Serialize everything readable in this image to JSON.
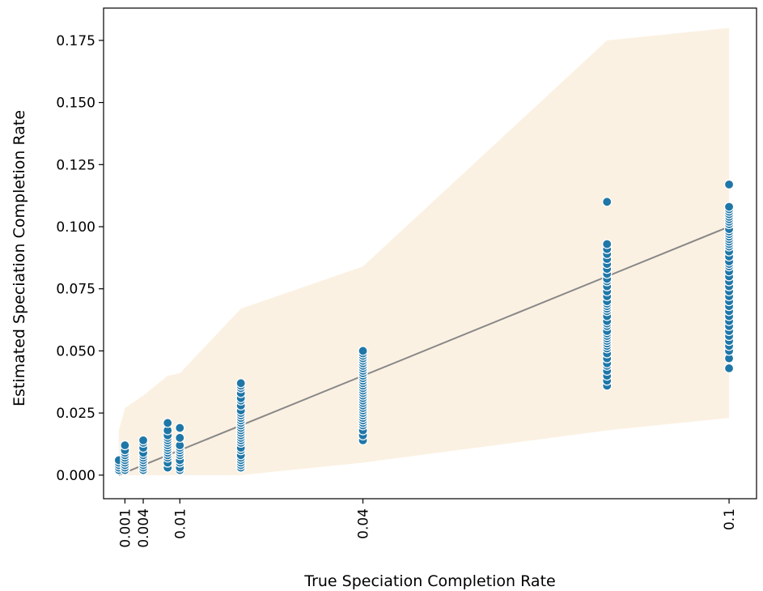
{
  "chart_data": {
    "type": "scatter",
    "title": "",
    "xlabel": "True Speciation Completion Rate",
    "ylabel": "Estimated Speciation Completion Rate",
    "xlim": [
      -0.0025,
      0.1045
    ],
    "ylim": [
      -0.0095,
      0.188
    ],
    "x_ticks": [
      {
        "value": 0.001,
        "label": "0.001"
      },
      {
        "value": 0.004,
        "label": "0.004"
      },
      {
        "value": 0.01,
        "label": "0.01"
      },
      {
        "value": 0.04,
        "label": "0.04"
      },
      {
        "value": 0.1,
        "label": "0.1"
      }
    ],
    "y_ticks": [
      {
        "value": 0.0,
        "label": "0.000"
      },
      {
        "value": 0.025,
        "label": "0.025"
      },
      {
        "value": 0.05,
        "label": "0.050"
      },
      {
        "value": 0.075,
        "label": "0.075"
      },
      {
        "value": 0.1,
        "label": "0.100"
      },
      {
        "value": 0.125,
        "label": "0.125"
      },
      {
        "value": 0.15,
        "label": "0.150"
      },
      {
        "value": 0.175,
        "label": "0.175"
      }
    ],
    "grid": false,
    "colors": {
      "points": "#1f77a8",
      "point_edge": "#ffffff",
      "line": "#888888",
      "band": "#fbf1e2"
    },
    "band": {
      "x": [
        0.0,
        0.001,
        0.004,
        0.007,
        0.008,
        0.01,
        0.02,
        0.04,
        0.08,
        0.1
      ],
      "upper": [
        0.018,
        0.027,
        0.032,
        0.038,
        0.04,
        0.041,
        0.067,
        0.084,
        0.175,
        0.18
      ],
      "lower": [
        0.0,
        0.0,
        0.0,
        0.0,
        0.0,
        0.0,
        0.0,
        0.005,
        0.018,
        0.023
      ]
    },
    "line": {
      "x": [
        0.0,
        0.1
      ],
      "y": [
        0.0,
        0.1
      ]
    },
    "series": [
      {
        "x": 0.0,
        "values": [
          0.002,
          0.003,
          0.004,
          0.005,
          0.006
        ]
      },
      {
        "x": 0.001,
        "values": [
          0.002,
          0.003,
          0.004,
          0.005,
          0.006,
          0.007,
          0.008,
          0.009,
          0.01,
          0.012
        ]
      },
      {
        "x": 0.004,
        "values": [
          0.002,
          0.003,
          0.004,
          0.005,
          0.006,
          0.007,
          0.008,
          0.009,
          0.011,
          0.013,
          0.014
        ]
      },
      {
        "x": 0.008,
        "values": [
          0.003,
          0.005,
          0.007,
          0.008,
          0.009,
          0.01,
          0.011,
          0.012,
          0.013,
          0.014,
          0.015,
          0.016,
          0.018,
          0.021
        ]
      },
      {
        "x": 0.01,
        "values": [
          0.002,
          0.003,
          0.005,
          0.006,
          0.008,
          0.009,
          0.01,
          0.011,
          0.012,
          0.015,
          0.019
        ]
      },
      {
        "x": 0.02,
        "values": [
          0.003,
          0.004,
          0.005,
          0.006,
          0.007,
          0.008,
          0.01,
          0.011,
          0.013,
          0.014,
          0.015,
          0.016,
          0.017,
          0.018,
          0.019,
          0.02,
          0.021,
          0.022,
          0.023,
          0.024,
          0.025,
          0.026,
          0.028,
          0.03,
          0.031,
          0.033,
          0.035,
          0.036,
          0.037
        ]
      },
      {
        "x": 0.04,
        "values": [
          0.014,
          0.016,
          0.018,
          0.02,
          0.021,
          0.022,
          0.023,
          0.024,
          0.025,
          0.026,
          0.027,
          0.028,
          0.029,
          0.03,
          0.031,
          0.032,
          0.033,
          0.034,
          0.035,
          0.036,
          0.037,
          0.038,
          0.039,
          0.04,
          0.041,
          0.042,
          0.043,
          0.044,
          0.045,
          0.046,
          0.047,
          0.048,
          0.049,
          0.05
        ]
      },
      {
        "x": 0.08,
        "values": [
          0.036,
          0.038,
          0.04,
          0.042,
          0.044,
          0.045,
          0.047,
          0.049,
          0.051,
          0.052,
          0.053,
          0.054,
          0.055,
          0.056,
          0.057,
          0.058,
          0.06,
          0.061,
          0.062,
          0.064,
          0.066,
          0.067,
          0.068,
          0.069,
          0.07,
          0.072,
          0.074,
          0.076,
          0.078,
          0.079,
          0.081,
          0.083,
          0.085,
          0.087,
          0.089,
          0.091,
          0.093,
          0.11
        ]
      },
      {
        "x": 0.1,
        "values": [
          0.043,
          0.047,
          0.05,
          0.052,
          0.054,
          0.056,
          0.058,
          0.06,
          0.062,
          0.064,
          0.066,
          0.068,
          0.07,
          0.072,
          0.074,
          0.076,
          0.078,
          0.08,
          0.082,
          0.084,
          0.085,
          0.086,
          0.088,
          0.09,
          0.092,
          0.093,
          0.094,
          0.095,
          0.096,
          0.097,
          0.098,
          0.099,
          0.101,
          0.102,
          0.103,
          0.104,
          0.105,
          0.106,
          0.107,
          0.108,
          0.117
        ]
      }
    ]
  }
}
